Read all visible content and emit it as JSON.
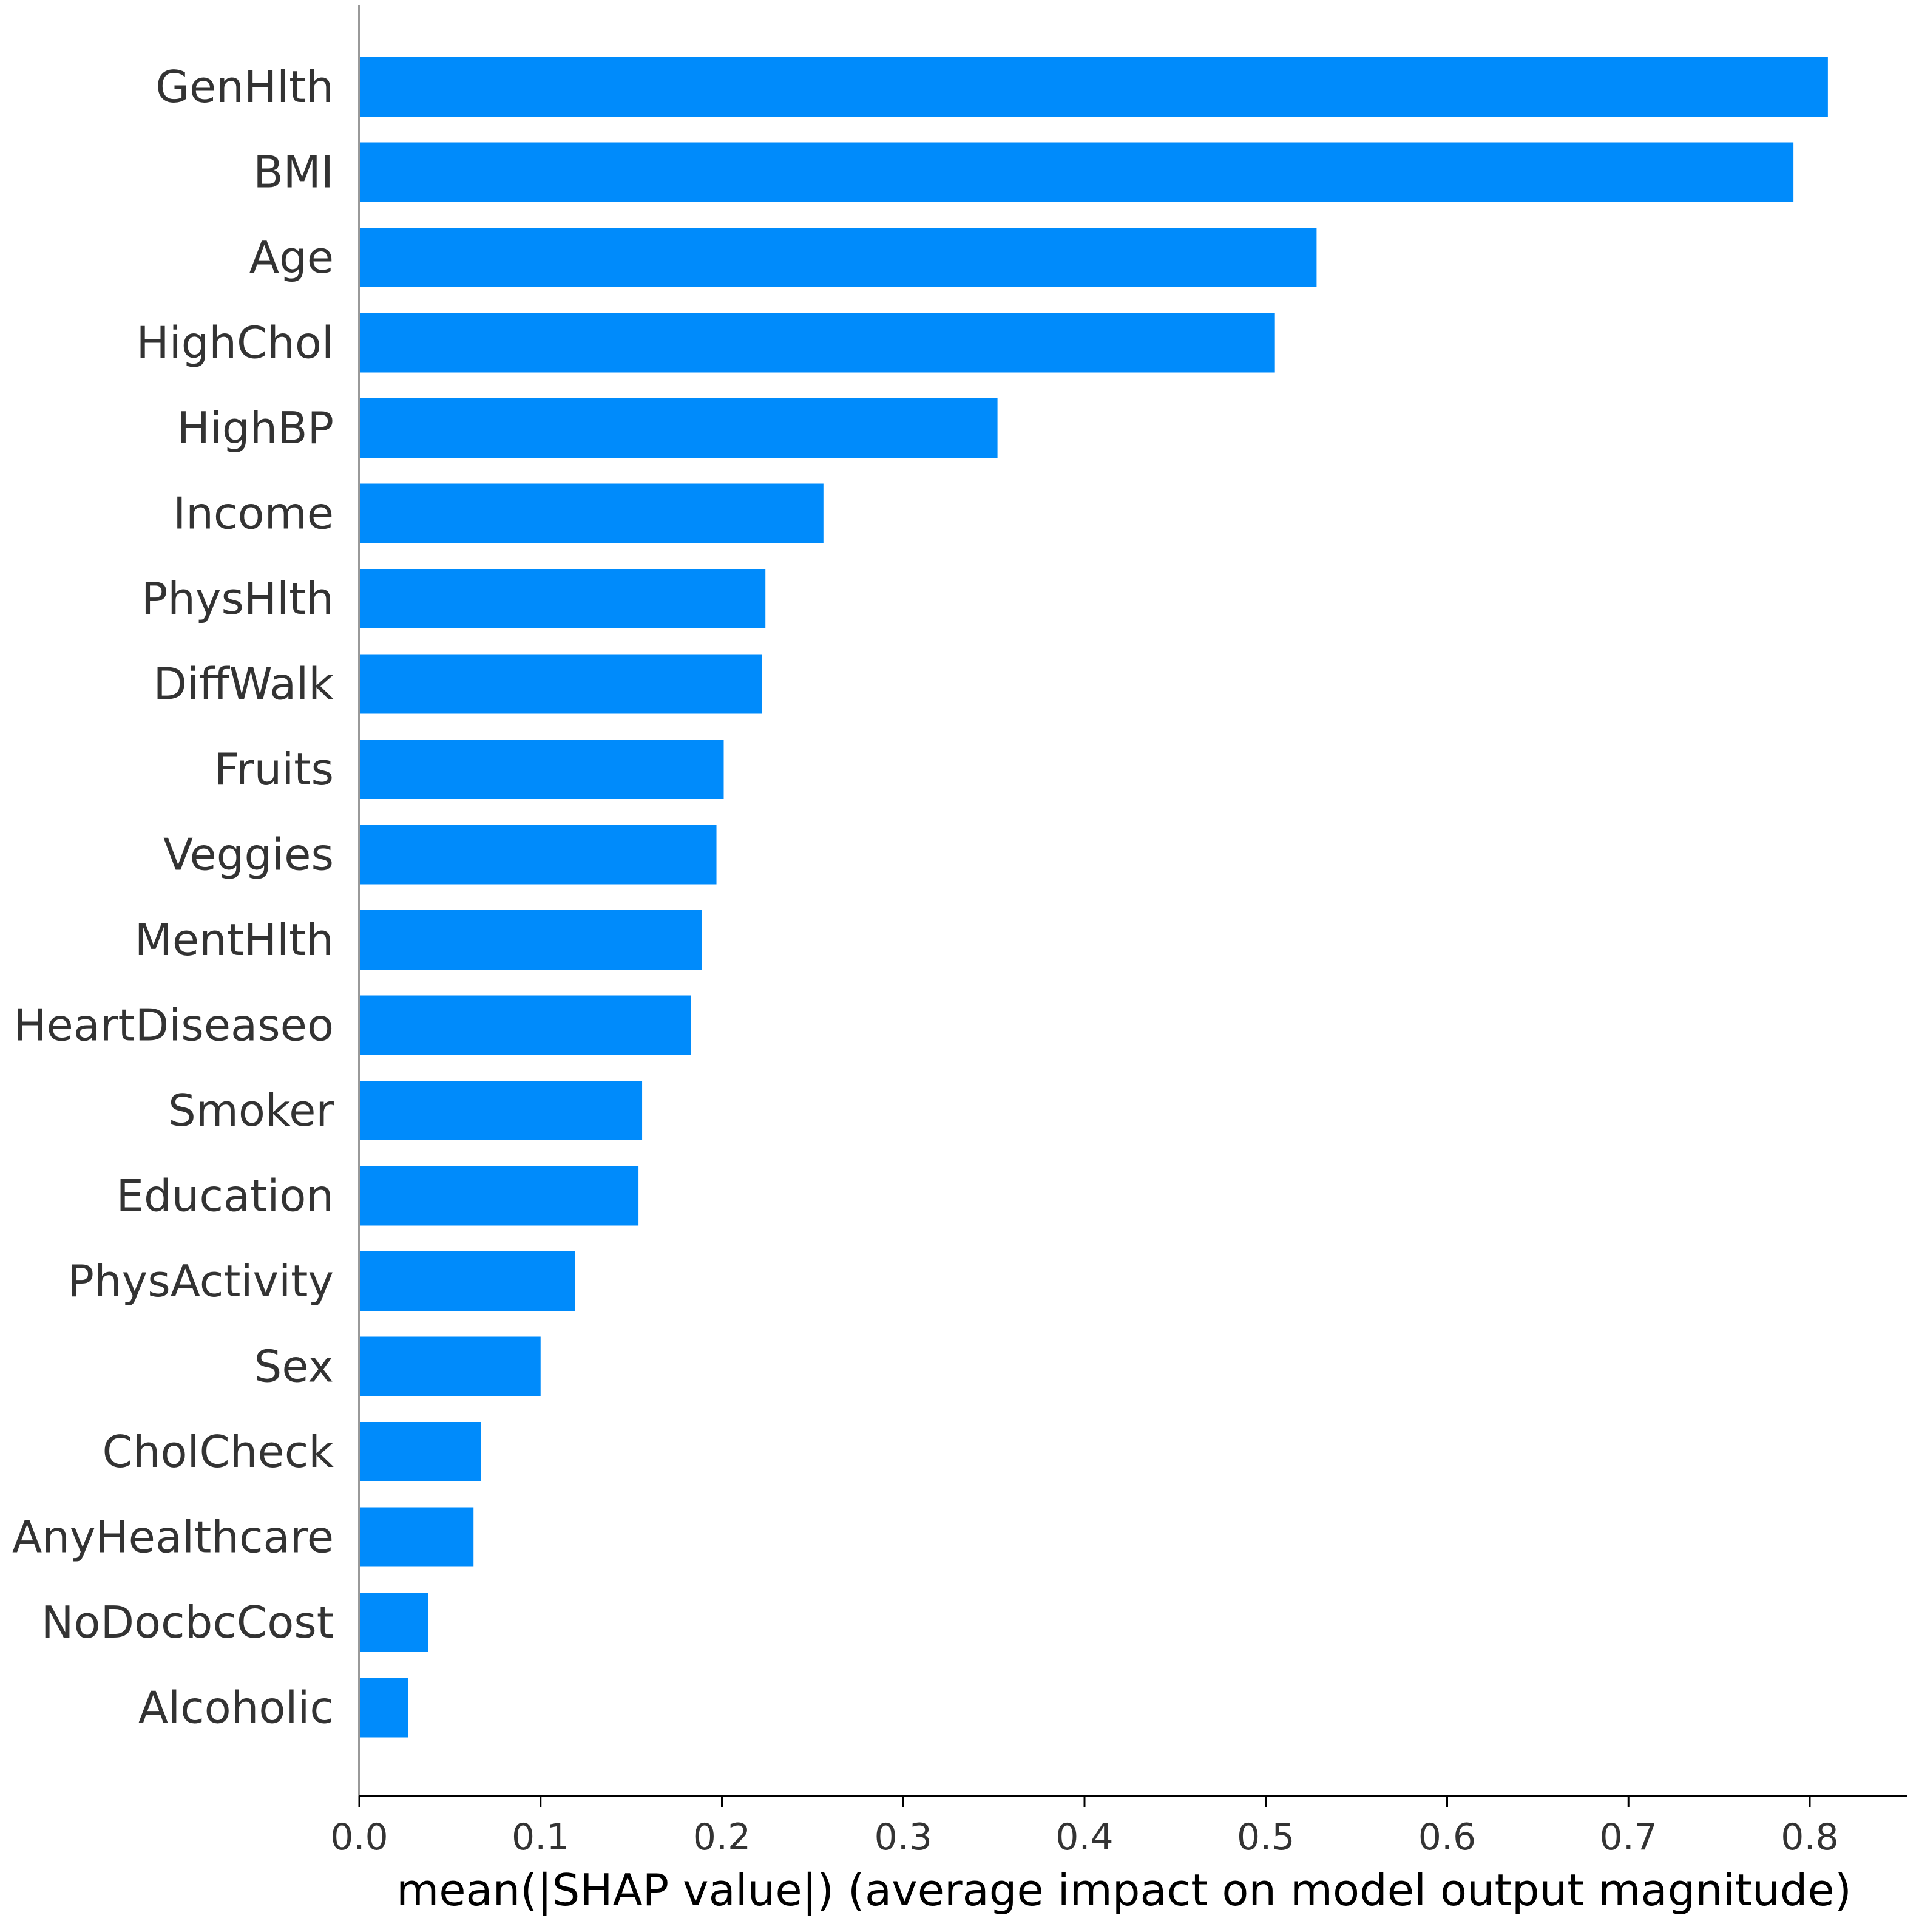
{
  "chart_data": {
    "type": "bar",
    "orientation": "horizontal",
    "title": "",
    "xlabel": "mean(|SHAP value|) (average impact on model output magnitude)",
    "ylabel": "",
    "xlim": [
      0,
      0.85
    ],
    "xticks": [
      "0.0",
      "0.1",
      "0.2",
      "0.3",
      "0.4",
      "0.5",
      "0.6",
      "0.7",
      "0.8"
    ],
    "grid": false,
    "bar_color": "#008bfb",
    "categories": [
      "GenHlth",
      "BMI",
      "Age",
      "HighChol",
      "HighBP",
      "Income",
      "PhysHlth",
      "DiffWalk",
      "Fruits",
      "Veggies",
      "MentHlth",
      "HeartDiseaseo",
      "Smoker",
      "Education",
      "PhysActivity",
      "Sex",
      "CholCheck",
      "AnyHealthcare",
      "NoDocbcCost",
      "Alcoholic"
    ],
    "values": [
      0.81,
      0.791,
      0.528,
      0.505,
      0.352,
      0.256,
      0.224,
      0.222,
      0.201,
      0.197,
      0.189,
      0.183,
      0.156,
      0.154,
      0.119,
      0.1,
      0.067,
      0.063,
      0.038,
      0.027
    ]
  }
}
